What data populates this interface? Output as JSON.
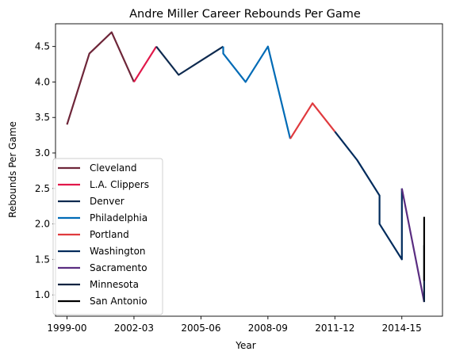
{
  "chart_data": {
    "type": "line",
    "title": "Andre Miller Career Rebounds Per Game",
    "xlabel": "Year",
    "ylabel": "Rebounds Per Game",
    "x_tick_labels": [
      "1999-00",
      "2002-03",
      "2005-06",
      "2008-09",
      "2011-12",
      "2014-15"
    ],
    "y_ticks": [
      "1.0",
      "1.5",
      "2.0",
      "2.5",
      "3.0",
      "3.5",
      "4.0",
      "4.5"
    ],
    "ylim": [
      0.7,
      4.82
    ],
    "legend_position": "lower-left",
    "series": [
      {
        "name": "Cleveland",
        "color": "#6e2639",
        "points": [
          [
            "1999-00",
            3.4
          ],
          [
            "2000-01",
            4.4
          ],
          [
            "2001-02",
            4.7
          ],
          [
            "2002-03",
            4.0
          ]
        ]
      },
      {
        "name": "L.A. Clippers",
        "color": "#e1184a",
        "points": [
          [
            "2002-03",
            4.0
          ],
          [
            "2003-04",
            4.5
          ]
        ]
      },
      {
        "name": "Denver",
        "color": "#0e2a4f",
        "points": [
          [
            "2003-04",
            4.5
          ],
          [
            "2004-05",
            4.1
          ],
          [
            "2005-06",
            4.3
          ],
          [
            "2006-07",
            4.5
          ]
        ]
      },
      {
        "name": "Philadelphia",
        "color": "#006bb6",
        "points": [
          [
            "2006-07",
            4.5
          ],
          [
            "2006-07",
            4.4
          ],
          [
            "2007-08",
            4.0
          ],
          [
            "2008-09",
            4.5
          ],
          [
            "2009-10",
            3.2
          ]
        ]
      },
      {
        "name": "Portland",
        "color": "#e03a3e",
        "points": [
          [
            "2009-10",
            3.2
          ],
          [
            "2010-11",
            3.7
          ],
          [
            "2011-12",
            3.3
          ]
        ]
      },
      {
        "name": "Washington",
        "color": "#002b5c",
        "points": [
          [
            "2011-12",
            3.3
          ],
          [
            "2012-13",
            2.9
          ],
          [
            "2013-14",
            2.4
          ],
          [
            "2013-14",
            2.0
          ],
          [
            "2014-15",
            1.5
          ],
          [
            "2014-15",
            2.5
          ]
        ]
      },
      {
        "name": "Sacramento",
        "color": "#5a2d81",
        "points": [
          [
            "2014-15",
            2.5
          ],
          [
            "2015-16",
            0.9
          ]
        ]
      },
      {
        "name": "Minnesota",
        "color": "#0c2340",
        "points": [
          [
            "2015-16",
            0.9
          ],
          [
            "2015-16",
            1.7
          ]
        ]
      },
      {
        "name": "San Antonio",
        "color": "#000000",
        "points": [
          [
            "2015-16",
            1.2
          ],
          [
            "2015-16",
            2.1
          ]
        ]
      }
    ]
  }
}
